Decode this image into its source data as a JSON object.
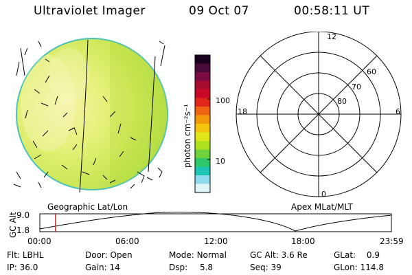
{
  "header": {
    "instrument": "Ultraviolet Imager",
    "date": "09 Oct 07",
    "time": "00:58:11 UT"
  },
  "colorbar": {
    "unit_label": "photon cm⁻²s⁻¹",
    "tick_labels": [
      "100",
      "10"
    ],
    "tick_values": [
      100,
      10
    ],
    "colors_top_to_bottom": [
      "#1a0020",
      "#4b0a3c",
      "#7a0a40",
      "#a80c30",
      "#c80a28",
      "#e0281a",
      "#ee6412",
      "#f49a0a",
      "#f4c40e",
      "#e0e61a",
      "#aee21e",
      "#6fd23a",
      "#2ec86a",
      "#1ec4b4",
      "#8fdcef",
      "#dff4f6"
    ]
  },
  "polar": {
    "mlt_labels": {
      "top": "12",
      "left": "18",
      "right": "6",
      "bottom": "0"
    },
    "lat_labels": [
      "80",
      "70",
      "60"
    ]
  },
  "projection_labels": {
    "left": "Geographic Lat/Lon",
    "right": "Apex MLat/MLT"
  },
  "orbit_plot": {
    "axis_label": "GC Alt",
    "y_ticks": [
      "9.0",
      "1.8"
    ],
    "x_ticks": [
      "00:00",
      "06:00",
      "12:00",
      "18:00",
      "23:59"
    ],
    "marker_color": "#c02020"
  },
  "info_rows": [
    [
      {
        "label": "Flt:",
        "value": "LBHL"
      },
      {
        "label": "Door:",
        "value": "Open"
      },
      {
        "label": "Mode:",
        "value": "Normal"
      },
      {
        "label": "GC Alt:",
        "value": "3.6 Re"
      },
      {
        "label": "GLat:",
        "value": "0.9"
      }
    ],
    [
      {
        "label": "IP:",
        "value": "36.0"
      },
      {
        "label": "Gain:",
        "value": "14"
      },
      {
        "label": "Dsp:",
        "value": "5.8"
      },
      {
        "label": "Seq:",
        "value": "39"
      },
      {
        "label": "GLon:",
        "value": "114.8"
      }
    ]
  ]
}
